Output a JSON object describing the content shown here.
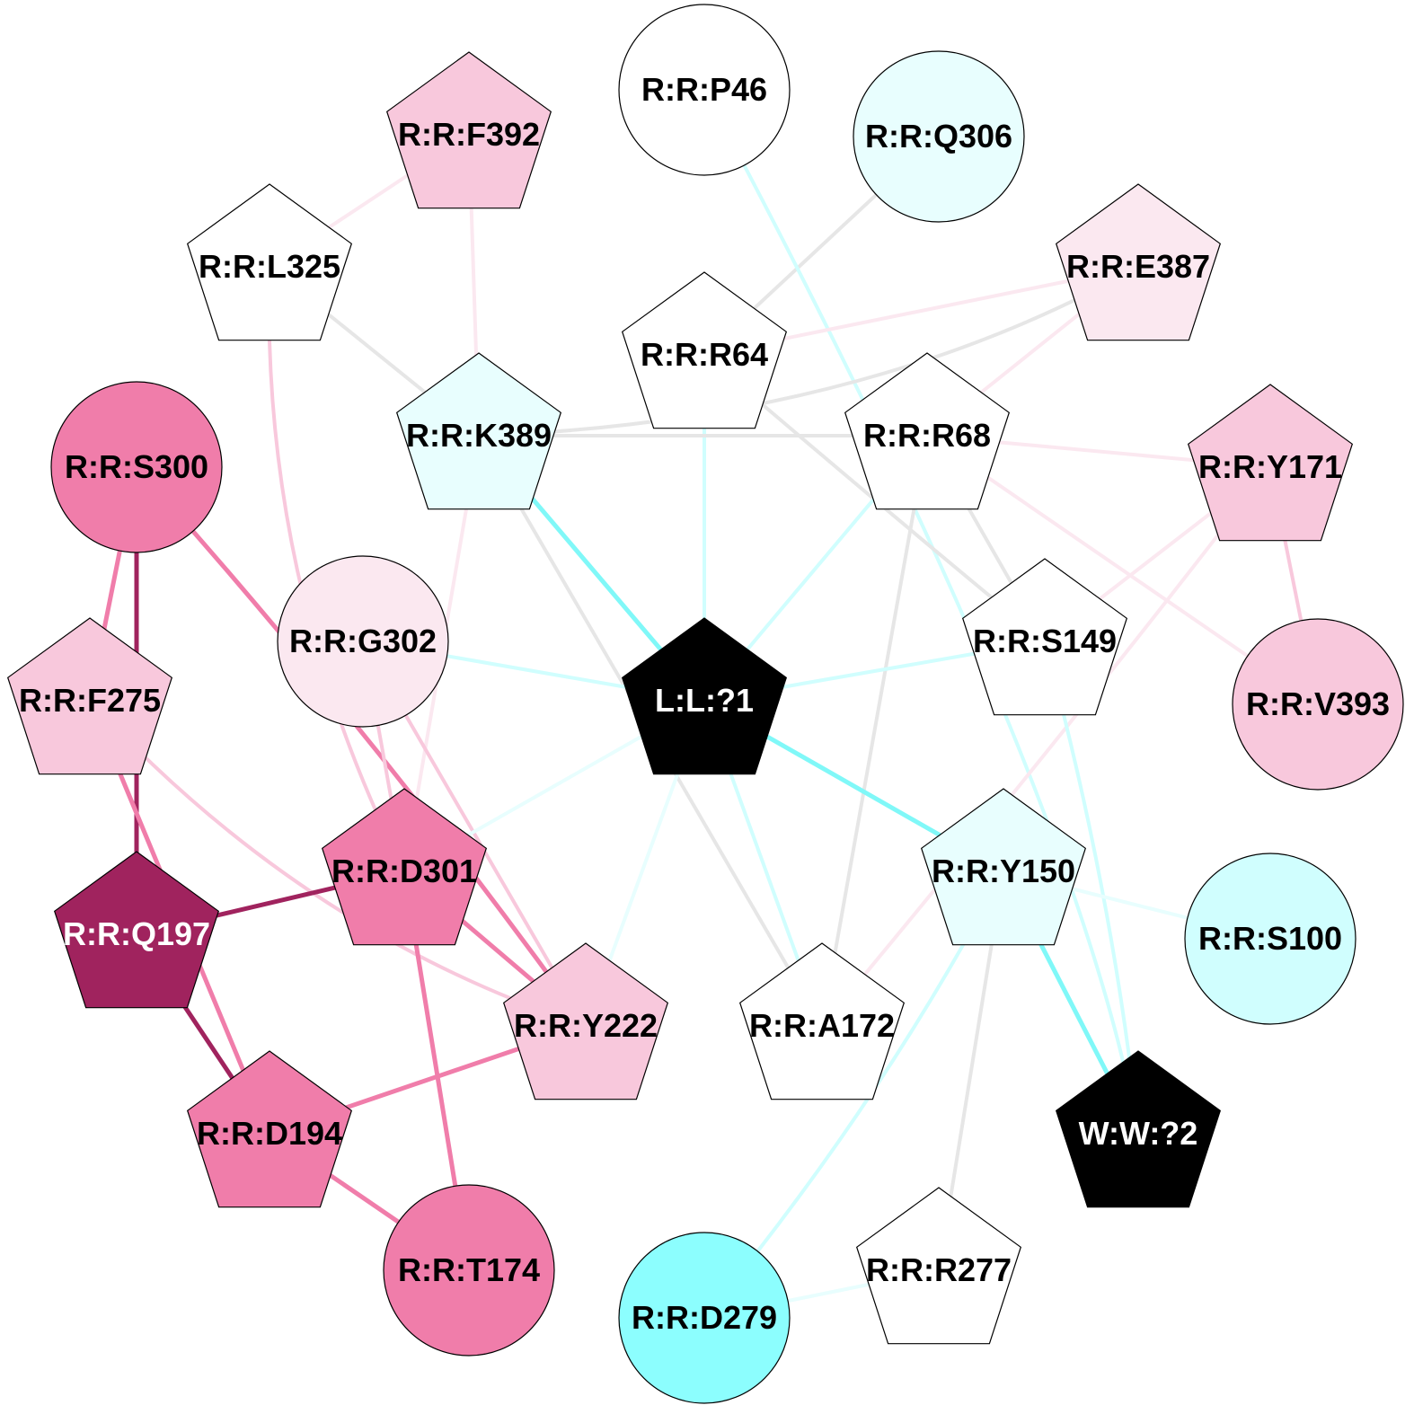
{
  "nodes": [
    {
      "id": "P46",
      "label": "R:R:P46",
      "shape": "circle",
      "fill": "#ffffff",
      "text": "#000000"
    },
    {
      "id": "Q306",
      "label": "R:R:Q306",
      "shape": "circle",
      "fill": "#e8fefe",
      "text": "#000000"
    },
    {
      "id": "F392",
      "label": "R:R:F392",
      "shape": "pentagon",
      "fill": "#f8c8dc",
      "text": "#000000"
    },
    {
      "id": "L325",
      "label": "R:R:L325",
      "shape": "pentagon",
      "fill": "#ffffff",
      "text": "#000000"
    },
    {
      "id": "E387",
      "label": "R:R:E387",
      "shape": "pentagon",
      "fill": "#fbe8f0",
      "text": "#000000"
    },
    {
      "id": "R64",
      "label": "R:R:R64",
      "shape": "pentagon",
      "fill": "#ffffff",
      "text": "#000000"
    },
    {
      "id": "K389",
      "label": "R:R:K389",
      "shape": "pentagon",
      "fill": "#e8fefe",
      "text": "#000000"
    },
    {
      "id": "R68",
      "label": "R:R:R68",
      "shape": "pentagon",
      "fill": "#ffffff",
      "text": "#000000"
    },
    {
      "id": "S300",
      "label": "R:R:S300",
      "shape": "circle",
      "fill": "#f07daa",
      "text": "#000000"
    },
    {
      "id": "Y171",
      "label": "R:R:Y171",
      "shape": "pentagon",
      "fill": "#f8c8dc",
      "text": "#000000"
    },
    {
      "id": "G302",
      "label": "R:R:G302",
      "shape": "circle",
      "fill": "#fbe8f0",
      "text": "#000000"
    },
    {
      "id": "S149",
      "label": "R:R:S149",
      "shape": "pentagon",
      "fill": "#ffffff",
      "text": "#000000"
    },
    {
      "id": "F275",
      "label": "R:R:F275",
      "shape": "pentagon",
      "fill": "#f8c8dc",
      "text": "#000000"
    },
    {
      "id": "L1",
      "label": "L:L:?1",
      "shape": "pentagon",
      "fill": "#000000",
      "text": "#ffffff"
    },
    {
      "id": "V393",
      "label": "R:R:V393",
      "shape": "circle",
      "fill": "#f8c8dc",
      "text": "#000000"
    },
    {
      "id": "D301",
      "label": "R:R:D301",
      "shape": "pentagon",
      "fill": "#f07daa",
      "text": "#000000"
    },
    {
      "id": "Y150",
      "label": "R:R:Y150",
      "shape": "pentagon",
      "fill": "#e8fefe",
      "text": "#000000"
    },
    {
      "id": "Q197",
      "label": "R:R:Q197",
      "shape": "pentagon",
      "fill": "#a0235e",
      "text": "#ffffff"
    },
    {
      "id": "S100",
      "label": "R:R:S100",
      "shape": "circle",
      "fill": "#d0fefe",
      "text": "#000000"
    },
    {
      "id": "Y222",
      "label": "R:R:Y222",
      "shape": "pentagon",
      "fill": "#f8c8dc",
      "text": "#000000"
    },
    {
      "id": "A172",
      "label": "R:R:A172",
      "shape": "pentagon",
      "fill": "#ffffff",
      "text": "#000000"
    },
    {
      "id": "D194",
      "label": "R:R:D194",
      "shape": "pentagon",
      "fill": "#f07daa",
      "text": "#000000"
    },
    {
      "id": "W2",
      "label": "W:W:?2",
      "shape": "pentagon",
      "fill": "#000000",
      "text": "#ffffff"
    },
    {
      "id": "T174",
      "label": "R:R:T174",
      "shape": "circle",
      "fill": "#f07daa",
      "text": "#000000"
    },
    {
      "id": "R277",
      "label": "R:R:R277",
      "shape": "pentagon",
      "fill": "#ffffff",
      "text": "#000000"
    },
    {
      "id": "D279",
      "label": "R:R:D279",
      "shape": "circle",
      "fill": "#8cfefe",
      "text": "#000000"
    }
  ],
  "edges": [
    {
      "a": "F392",
      "b": "L325",
      "color": "#fbe8f0"
    },
    {
      "a": "F392",
      "b": "K389",
      "color": "#fbe8f0"
    },
    {
      "a": "L325",
      "b": "K389",
      "color": "#e6e6e6"
    },
    {
      "a": "L325",
      "b": "D301",
      "color": "#f8c8dc"
    },
    {
      "a": "Q306",
      "b": "R64",
      "color": "#e6e6e6"
    },
    {
      "a": "P46",
      "b": "W2",
      "color": "#d0fefe"
    },
    {
      "a": "E387",
      "b": "R64",
      "color": "#fbe8f0"
    },
    {
      "a": "E387",
      "b": "K389",
      "color": "#e6e6e6"
    },
    {
      "a": "E387",
      "b": "R68",
      "color": "#fbe8f0"
    },
    {
      "a": "R64",
      "b": "S149",
      "color": "#e6e6e6"
    },
    {
      "a": "R64",
      "b": "L1",
      "color": "#d0fefe"
    },
    {
      "a": "K389",
      "b": "R68",
      "color": "#e6e6e6"
    },
    {
      "a": "K389",
      "b": "L1",
      "color": "#80f8f8"
    },
    {
      "a": "K389",
      "b": "A172",
      "color": "#e6e6e6"
    },
    {
      "a": "K389",
      "b": "D301",
      "color": "#fbe8f0"
    },
    {
      "a": "R68",
      "b": "Y171",
      "color": "#fbe8f0"
    },
    {
      "a": "R68",
      "b": "V393",
      "color": "#fbe8f0"
    },
    {
      "a": "R68",
      "b": "S149",
      "color": "#e6e6e6"
    },
    {
      "a": "R68",
      "b": "L1",
      "color": "#d0fefe"
    },
    {
      "a": "R68",
      "b": "A172",
      "color": "#e6e6e6"
    },
    {
      "a": "Y171",
      "b": "V393",
      "color": "#f8c8dc"
    },
    {
      "a": "Y171",
      "b": "S149",
      "color": "#fbe8f0"
    },
    {
      "a": "Y171",
      "b": "A172",
      "color": "#fbe8f0"
    },
    {
      "a": "S300",
      "b": "F275",
      "color": "#f07daa"
    },
    {
      "a": "S300",
      "b": "Q197",
      "color": "#a0235e"
    },
    {
      "a": "S300",
      "b": "Y222",
      "color": "#f07daa"
    },
    {
      "a": "G302",
      "b": "L1",
      "color": "#d0fefe"
    },
    {
      "a": "G302",
      "b": "D301",
      "color": "#f8c8dc"
    },
    {
      "a": "G302",
      "b": "Y222",
      "color": "#f8c8dc"
    },
    {
      "a": "S149",
      "b": "L1",
      "color": "#d0fefe"
    },
    {
      "a": "S149",
      "b": "W2",
      "color": "#d0fefe"
    },
    {
      "a": "F275",
      "b": "D194",
      "color": "#f07daa"
    },
    {
      "a": "F275",
      "b": "Y222",
      "color": "#f8c8dc"
    },
    {
      "a": "L1",
      "b": "D301",
      "color": "#e8fefe"
    },
    {
      "a": "L1",
      "b": "Y222",
      "color": "#e8fefe"
    },
    {
      "a": "L1",
      "b": "A172",
      "color": "#d0fefe"
    },
    {
      "a": "L1",
      "b": "Y150",
      "color": "#80f8f8"
    },
    {
      "a": "Q197",
      "b": "D301",
      "color": "#a0235e"
    },
    {
      "a": "Q197",
      "b": "D194",
      "color": "#a0235e"
    },
    {
      "a": "D301",
      "b": "Y222",
      "color": "#f07daa"
    },
    {
      "a": "D301",
      "b": "T174",
      "color": "#f07daa"
    },
    {
      "a": "Y222",
      "b": "D194",
      "color": "#f07daa"
    },
    {
      "a": "D194",
      "b": "T174",
      "color": "#f07daa"
    },
    {
      "a": "Y150",
      "b": "S100",
      "color": "#e8fefe"
    },
    {
      "a": "Y150",
      "b": "W2",
      "color": "#80f8f8"
    },
    {
      "a": "Y150",
      "b": "R277",
      "color": "#e6e6e6"
    },
    {
      "a": "Y150",
      "b": "D279",
      "color": "#d0fefe"
    },
    {
      "a": "R277",
      "b": "D279",
      "color": "#e8fefe"
    }
  ]
}
